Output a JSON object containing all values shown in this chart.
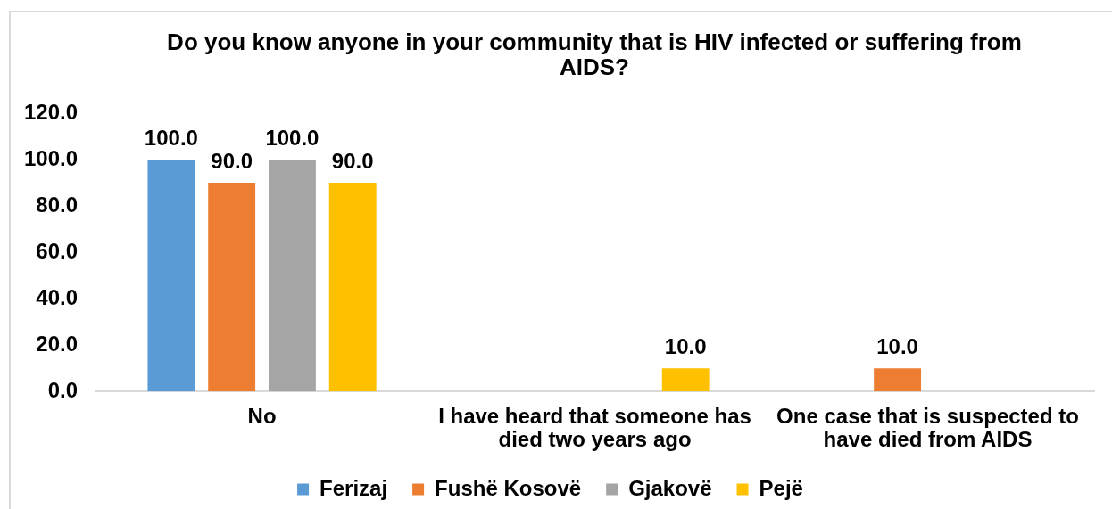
{
  "chart_data": {
    "type": "bar",
    "title": "Do you know anyone in your community that is HIV infected or suffering from AIDS?",
    "categories": [
      "No",
      "I have heard that someone has died two years ago",
      "One case that is suspected to have died from AIDS"
    ],
    "series": [
      {
        "name": "Ferizaj",
        "color": "#5b9bd5",
        "values": [
          100,
          null,
          null
        ],
        "value_labels": [
          "100.0",
          null,
          null
        ]
      },
      {
        "name": "Fushë Kosovë",
        "color": "#ed7d31",
        "values": [
          90,
          null,
          10
        ],
        "value_labels": [
          "90.0",
          null,
          "10.0"
        ]
      },
      {
        "name": "Gjakovë",
        "color": "#a5a5a5",
        "values": [
          100,
          null,
          null
        ],
        "value_labels": [
          "100.0",
          null,
          null
        ]
      },
      {
        "name": "Pejë",
        "color": "#ffc000",
        "values": [
          90,
          10,
          null
        ],
        "value_labels": [
          "90.0",
          "10.0",
          null
        ]
      }
    ],
    "ylim": [
      0,
      120
    ],
    "yticks": [
      {
        "value": 0,
        "label": "0.0"
      },
      {
        "value": 20,
        "label": "20.0"
      },
      {
        "value": 40,
        "label": "40.0"
      },
      {
        "value": 60,
        "label": "60.0"
      },
      {
        "value": 80,
        "label": "80.0"
      },
      {
        "value": 100,
        "label": "100.0"
      },
      {
        "value": 120,
        "label": "120.0"
      }
    ],
    "grid": false,
    "legend": "bottom"
  }
}
